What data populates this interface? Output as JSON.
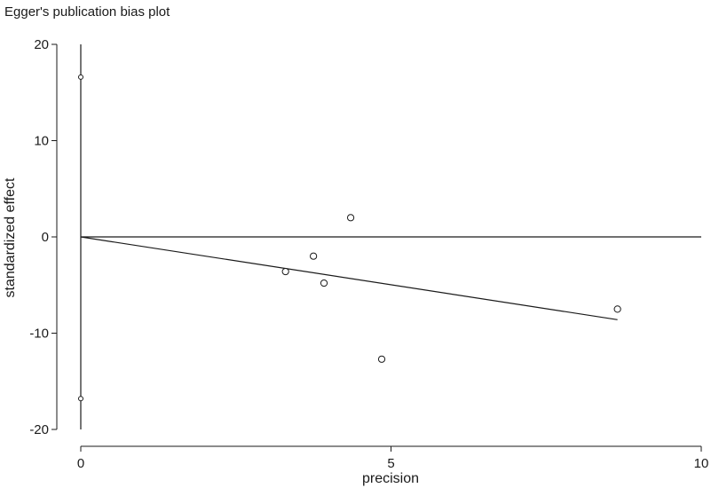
{
  "chart_data": {
    "type": "scatter",
    "title": "Egger's publication bias plot",
    "xlabel": "precision",
    "ylabel": "standardized effect",
    "xlim": [
      0,
      10
    ],
    "ylim": [
      -20,
      20
    ],
    "x_ticks": [
      0,
      5,
      10
    ],
    "y_ticks": [
      20,
      10,
      0,
      -10,
      -20
    ],
    "grid": false,
    "points": [
      {
        "x": 0.0,
        "y": 16.6
      },
      {
        "x": 0.0,
        "y": -16.8
      },
      {
        "x": 3.3,
        "y": -3.6
      },
      {
        "x": 3.75,
        "y": -2.0
      },
      {
        "x": 3.92,
        "y": -4.8
      },
      {
        "x": 4.35,
        "y": 2.0
      },
      {
        "x": 4.85,
        "y": -12.7
      },
      {
        "x": 8.65,
        "y": -7.5
      }
    ],
    "reference_line": {
      "y": 0,
      "x_start": 0,
      "x_end": 10
    },
    "regression_line": {
      "x_start": 0,
      "y_start": 0,
      "x_end": 8.65,
      "y_end": -8.6
    },
    "confidence_interval": {
      "x": 0,
      "y_low": -20,
      "y_high": 20
    }
  }
}
